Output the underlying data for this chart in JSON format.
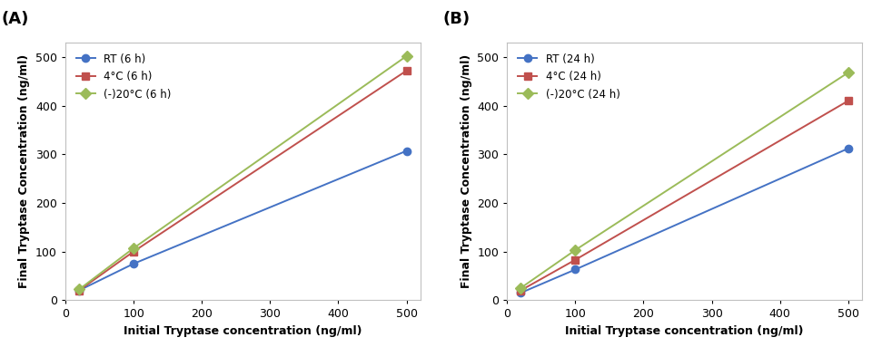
{
  "panel_A": {
    "label": "(A)",
    "x": [
      20,
      100,
      500
    ],
    "series": [
      {
        "name": "RT (6 h)",
        "y": [
          20,
          75,
          307
        ],
        "color": "#4472C4",
        "marker": "o"
      },
      {
        "name": "4°C (6 h)",
        "y": [
          20,
          100,
          472
        ],
        "color": "#C0504D",
        "marker": "s"
      },
      {
        "name": "(-)20°C (6 h)",
        "y": [
          22,
          107,
          502
        ],
        "color": "#9BBB59",
        "marker": "D"
      }
    ],
    "xlabel": "Initial Tryptase concentration (ng/ml)",
    "ylabel": "Final Tryptase Concentration (ng/ml)",
    "xlim": [
      0,
      520
    ],
    "ylim": [
      0,
      530
    ],
    "xticks": [
      0,
      100,
      200,
      300,
      400,
      500
    ],
    "yticks": [
      0,
      100,
      200,
      300,
      400,
      500
    ]
  },
  "panel_B": {
    "label": "(B)",
    "x": [
      20,
      100,
      500
    ],
    "series": [
      {
        "name": "RT (24 h)",
        "y": [
          15,
          63,
          312
        ],
        "color": "#4472C4",
        "marker": "o"
      },
      {
        "name": "4°C (24 h)",
        "y": [
          20,
          83,
          410
        ],
        "color": "#C0504D",
        "marker": "s"
      },
      {
        "name": "(-)20°C (24 h)",
        "y": [
          25,
          103,
          468
        ],
        "color": "#9BBB59",
        "marker": "D"
      }
    ],
    "xlabel": "Initial Tryptase concentration (ng/ml)",
    "ylabel": "Final Tryptase Concentration (ng/ml)",
    "xlim": [
      0,
      520
    ],
    "ylim": [
      0,
      530
    ],
    "xticks": [
      0,
      100,
      200,
      300,
      400,
      500
    ],
    "yticks": [
      0,
      100,
      200,
      300,
      400,
      500
    ]
  },
  "background_color": "#ffffff",
  "axes_bg": "#ffffff",
  "label_fontsize": 9,
  "tick_fontsize": 9,
  "panel_label_fontsize": 13,
  "legend_fontsize": 8.5,
  "linewidth": 1.4,
  "markersize": 6
}
